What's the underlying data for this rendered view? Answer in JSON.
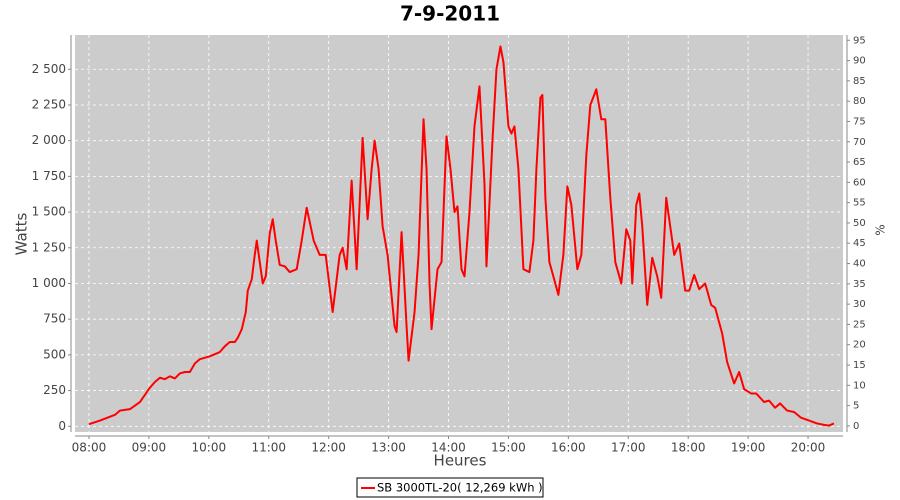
{
  "chart_data": {
    "type": "line",
    "title": "7-9-2011",
    "xlabel": "Heures",
    "ylabel": "Watts",
    "y2label": "%",
    "x": [
      "08:00",
      "08:11",
      "08:26",
      "08:31",
      "08:41",
      "08:51",
      "09:01",
      "09:06",
      "09:11",
      "09:16",
      "09:21",
      "09:26",
      "09:31",
      "09:36",
      "09:41",
      "09:46",
      "09:51",
      "10:01",
      "10:11",
      "10:16",
      "10:21",
      "10:26",
      "10:29",
      "10:33",
      "10:37",
      "10:39",
      "10:43",
      "10:46",
      "10:48",
      "10:51",
      "10:54",
      "10:57",
      "11:01",
      "11:04",
      "11:07",
      "11:11",
      "11:16",
      "11:21",
      "11:28",
      "11:33",
      "11:38",
      "11:45",
      "11:51",
      "11:57",
      "12:04",
      "12:11",
      "12:14",
      "12:18",
      "12:23",
      "12:28",
      "12:34",
      "12:39",
      "12:43",
      "12:46",
      "12:50",
      "12:54",
      "12:59",
      "13:06",
      "13:08",
      "13:13",
      "13:15",
      "13:18",
      "13:20",
      "13:26",
      "13:30",
      "13:35",
      "13:38",
      "13:41",
      "13:43",
      "13:49",
      "13:53",
      "13:58",
      "14:02",
      "14:06",
      "14:09",
      "14:13",
      "14:16",
      "14:21",
      "14:26",
      "14:31",
      "14:36",
      "14:38",
      "14:44",
      "14:48",
      "14:52",
      "14:55",
      "15:00",
      "15:03",
      "15:06",
      "15:10",
      "15:15",
      "15:21",
      "15:25",
      "15:28",
      "15:32",
      "15:34",
      "15:37",
      "15:41",
      "15:45",
      "15:50",
      "15:55",
      "15:59",
      "16:03",
      "16:09",
      "16:13",
      "16:18",
      "16:22",
      "16:28",
      "16:33",
      "16:37",
      "16:42",
      "16:47",
      "16:53",
      "16:58",
      "17:02",
      "17:04",
      "17:08",
      "17:11",
      "17:14",
      "17:19",
      "17:24",
      "17:29",
      "17:33",
      "17:38",
      "17:42",
      "17:46",
      "17:51",
      "17:57",
      "18:01",
      "18:06",
      "18:11",
      "18:17",
      "18:23",
      "18:27",
      "18:34",
      "18:39",
      "18:46",
      "18:51",
      "18:56",
      "19:03",
      "19:08",
      "19:16",
      "19:21",
      "19:27",
      "19:32",
      "19:39",
      "19:46",
      "19:53",
      "20:01",
      "20:09",
      "20:16",
      "20:21",
      "20:26"
    ],
    "series": [
      {
        "name": "SB 3000TL-20( 12,269 kWh  )",
        "color": "#ff0000",
        "values": [
          15,
          40,
          80,
          110,
          120,
          170,
          270,
          310,
          340,
          330,
          350,
          335,
          370,
          380,
          380,
          440,
          470,
          490,
          520,
          560,
          590,
          590,
          620,
          680,
          800,
          950,
          1030,
          1200,
          1300,
          1150,
          1000,
          1050,
          1350,
          1450,
          1300,
          1130,
          1120,
          1080,
          1100,
          1300,
          1530,
          1300,
          1200,
          1200,
          800,
          1200,
          1250,
          1100,
          1720,
          1100,
          2020,
          1450,
          1800,
          2000,
          1800,
          1400,
          1200,
          700,
          660,
          1360,
          1100,
          700,
          460,
          800,
          1200,
          2150,
          1800,
          1000,
          680,
          1100,
          1150,
          2030,
          1800,
          1500,
          1540,
          1100,
          1050,
          1500,
          2100,
          2380,
          1700,
          1120,
          2000,
          2500,
          2660,
          2550,
          2100,
          2050,
          2100,
          1800,
          1100,
          1080,
          1300,
          1800,
          2300,
          2320,
          1600,
          1150,
          1050,
          920,
          1200,
          1680,
          1550,
          1100,
          1200,
          1900,
          2250,
          2360,
          2150,
          2150,
          1600,
          1150,
          1000,
          1380,
          1300,
          1000,
          1550,
          1630,
          1400,
          850,
          1180,
          1050,
          900,
          1600,
          1400,
          1200,
          1280,
          950,
          950,
          1060,
          960,
          1000,
          850,
          830,
          650,
          450,
          300,
          380,
          260,
          230,
          230,
          170,
          180,
          130,
          160,
          110,
          100,
          60,
          40,
          20,
          10,
          5,
          20
        ]
      }
    ],
    "xlim": [
      "07:46",
      "20:35"
    ],
    "xticks": [
      "08:00",
      "09:00",
      "10:00",
      "11:00",
      "12:00",
      "13:00",
      "14:00",
      "15:00",
      "16:00",
      "17:00",
      "18:00",
      "19:00",
      "20:00"
    ],
    "ylim": [
      -40,
      2740
    ],
    "yticks": [
      0,
      250,
      500,
      750,
      {
        "value": 1000,
        "label": "1 000"
      },
      {
        "value": 1250,
        "label": "1 250"
      },
      {
        "value": 1500,
        "label": "1 500"
      },
      {
        "value": 1750,
        "label": "1 750"
      },
      {
        "value": 2000,
        "label": "2 000"
      },
      {
        "value": 2250,
        "label": "2 250"
      },
      {
        "value": 2500,
        "label": "2 500"
      }
    ],
    "y2lim": [
      -1.5,
      96.3
    ],
    "y2ticks": [
      0,
      5,
      10,
      15,
      20,
      25,
      30,
      35,
      40,
      45,
      50,
      55,
      60,
      65,
      70,
      75,
      80,
      85,
      90,
      95
    ],
    "grid": true
  }
}
